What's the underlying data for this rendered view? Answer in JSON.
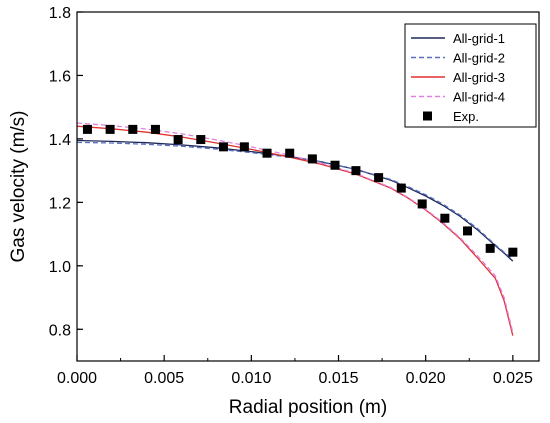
{
  "chart_data": {
    "type": "line",
    "title": "",
    "xlabel": "Radial position (m)",
    "ylabel": "Gas velocity (m/s)",
    "xlim": [
      0.0,
      0.0265
    ],
    "ylim": [
      0.7,
      1.8
    ],
    "xticks": [
      0.0,
      0.005,
      0.01,
      0.015,
      0.02,
      0.025
    ],
    "xtick_labels": [
      "0.000",
      "0.005",
      "0.010",
      "0.015",
      "0.020",
      "0.025"
    ],
    "yticks": [
      0.8,
      1.0,
      1.2,
      1.4,
      1.6,
      1.8
    ],
    "ytick_labels": [
      "0.8",
      "1.0",
      "1.2",
      "1.4",
      "1.6",
      "1.8"
    ],
    "grid": false,
    "legend_position": "top-right",
    "series": [
      {
        "name": "All-grid-1",
        "style": "solid",
        "color": "#1f2a5a",
        "x": [
          0.0,
          0.002,
          0.004,
          0.006,
          0.008,
          0.01,
          0.012,
          0.014,
          0.016,
          0.018,
          0.019,
          0.02,
          0.021,
          0.022,
          0.023,
          0.024,
          0.0245,
          0.025
        ],
        "y": [
          1.395,
          1.392,
          1.388,
          1.381,
          1.372,
          1.36,
          1.346,
          1.328,
          1.304,
          1.27,
          1.246,
          1.22,
          1.19,
          1.155,
          1.112,
          1.063,
          1.04,
          1.015
        ]
      },
      {
        "name": "All-grid-2",
        "style": "dashed",
        "color": "#5a6fc0",
        "x": [
          0.0,
          0.002,
          0.004,
          0.006,
          0.008,
          0.01,
          0.012,
          0.014,
          0.016,
          0.018,
          0.019,
          0.02,
          0.021,
          0.022,
          0.023,
          0.024,
          0.0245,
          0.025
        ],
        "y": [
          1.389,
          1.387,
          1.383,
          1.377,
          1.368,
          1.357,
          1.344,
          1.327,
          1.304,
          1.272,
          1.249,
          1.224,
          1.194,
          1.159,
          1.116,
          1.066,
          1.043,
          1.02
        ]
      },
      {
        "name": "All-grid-3",
        "style": "solid",
        "color": "#e03030",
        "x": [
          0.0,
          0.002,
          0.004,
          0.006,
          0.008,
          0.01,
          0.012,
          0.014,
          0.016,
          0.018,
          0.019,
          0.02,
          0.021,
          0.022,
          0.023,
          0.024,
          0.0245,
          0.025
        ],
        "y": [
          1.44,
          1.432,
          1.421,
          1.406,
          1.387,
          1.367,
          1.345,
          1.32,
          1.289,
          1.245,
          1.213,
          1.176,
          1.133,
          1.084,
          1.023,
          0.96,
          0.89,
          0.78
        ]
      },
      {
        "name": "All-grid-4",
        "style": "dashed",
        "color": "#e080e0",
        "x": [
          0.0,
          0.002,
          0.004,
          0.006,
          0.008,
          0.01,
          0.012,
          0.014,
          0.016,
          0.018,
          0.019,
          0.02,
          0.021,
          0.022,
          0.023,
          0.024,
          0.0245,
          0.025
        ],
        "y": [
          1.45,
          1.442,
          1.431,
          1.416,
          1.397,
          1.375,
          1.351,
          1.324,
          1.291,
          1.247,
          1.215,
          1.178,
          1.136,
          1.087,
          1.03,
          0.968,
          0.9,
          0.79
        ]
      },
      {
        "name": "Exp.",
        "style": "marker-square",
        "color": "#000000",
        "x": [
          0.0006,
          0.0019,
          0.0032,
          0.0045,
          0.0058,
          0.0071,
          0.0084,
          0.0096,
          0.0109,
          0.0122,
          0.0135,
          0.0148,
          0.016,
          0.0173,
          0.0186,
          0.0198,
          0.0211,
          0.0224,
          0.0237,
          0.025
        ],
        "y": [
          1.43,
          1.43,
          1.43,
          1.43,
          1.398,
          1.398,
          1.375,
          1.375,
          1.355,
          1.355,
          1.337,
          1.317,
          1.3,
          1.278,
          1.245,
          1.195,
          1.15,
          1.11,
          1.055,
          1.043
        ]
      }
    ]
  }
}
